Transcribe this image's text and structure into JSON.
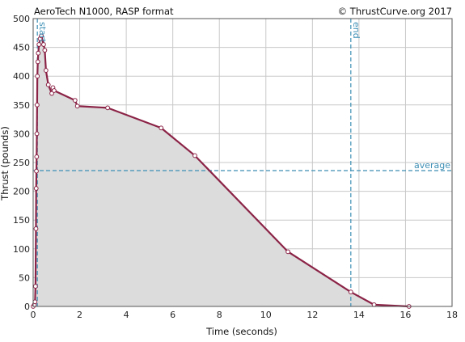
{
  "chart_data": {
    "type": "area",
    "title": "AeroTech N1000, RASP format",
    "credit": "© ThrustCurve.org 2017",
    "xlabel": "Time (seconds)",
    "ylabel": "Thrust (pounds)",
    "xlim": [
      0,
      18
    ],
    "ylim": [
      0,
      500
    ],
    "xticks": [
      "0",
      "2",
      "4",
      "6",
      "8",
      "10",
      "12",
      "14",
      "16",
      "18"
    ],
    "yticks": [
      "0",
      "50",
      "100",
      "150",
      "200",
      "250",
      "300",
      "350",
      "400",
      "450",
      "500"
    ],
    "grid": true,
    "colors": {
      "line": "#8b2346",
      "fill": "#dcdcdc",
      "marker_line": "#3d8fb5",
      "grid": "#c8c8c8"
    },
    "markers": {
      "start": {
        "x": 0.18,
        "label": "start"
      },
      "end": {
        "x": 13.65,
        "label": "end"
      },
      "average": {
        "y": 236,
        "label": "average"
      }
    },
    "series": [
      {
        "x": [
          0.0,
          0.05,
          0.08,
          0.1,
          0.12,
          0.13,
          0.14,
          0.15,
          0.16,
          0.17,
          0.18,
          0.2,
          0.22,
          0.25,
          0.3,
          0.35,
          0.45,
          0.5,
          0.55,
          0.65,
          0.8,
          0.85,
          0.9,
          1.8,
          1.9,
          3.2,
          5.5,
          6.95,
          10.95,
          13.65,
          14.65,
          16.15
        ],
        "y": [
          0,
          3,
          8,
          35,
          135,
          205,
          235,
          260,
          300,
          350,
          400,
          425,
          440,
          455,
          465,
          470,
          455,
          445,
          410,
          385,
          370,
          380,
          375,
          358,
          348,
          345,
          310,
          262,
          95,
          25,
          3,
          0
        ]
      }
    ]
  }
}
